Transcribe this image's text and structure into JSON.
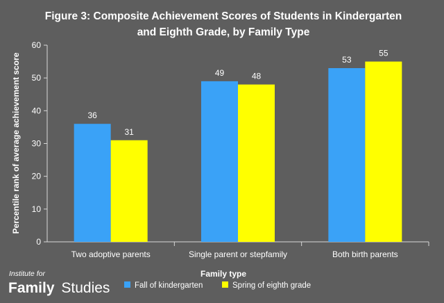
{
  "chart_data": {
    "type": "bar",
    "title": "Figure 3: Composite Achievement Scores of Students in Kindergarten and Eighth Grade, by Family Type",
    "title_lines": [
      "Figure 3: Composite Achievement Scores of Students in Kindergarten",
      "and Eighth Grade, by Family Type"
    ],
    "xlabel": "Family type",
    "ylabel": "Percentile rank of average achievement score",
    "categories": [
      "Two adoptive parents",
      "Single parent or stepfamily",
      "Both birth parents"
    ],
    "series": [
      {
        "name": "Fall of kindergarten",
        "values": [
          36,
          49,
          53
        ],
        "color": "#3aa2f7"
      },
      {
        "name": "Spring of eighth grade",
        "values": [
          31,
          48,
          55
        ],
        "color": "#ffff00"
      }
    ],
    "ylim": [
      0,
      60
    ],
    "yticks": [
      0,
      10,
      20,
      30,
      40,
      50,
      60
    ],
    "grid": false,
    "data_labels": true,
    "legend_position": "bottom",
    "background_color": "#5e5e5e",
    "axis_color": "#d8d8d8",
    "text_color": "#ffffff"
  },
  "branding": {
    "logo_small": "Institute for",
    "logo_bold": "Family",
    "logo_light": "Studies"
  }
}
